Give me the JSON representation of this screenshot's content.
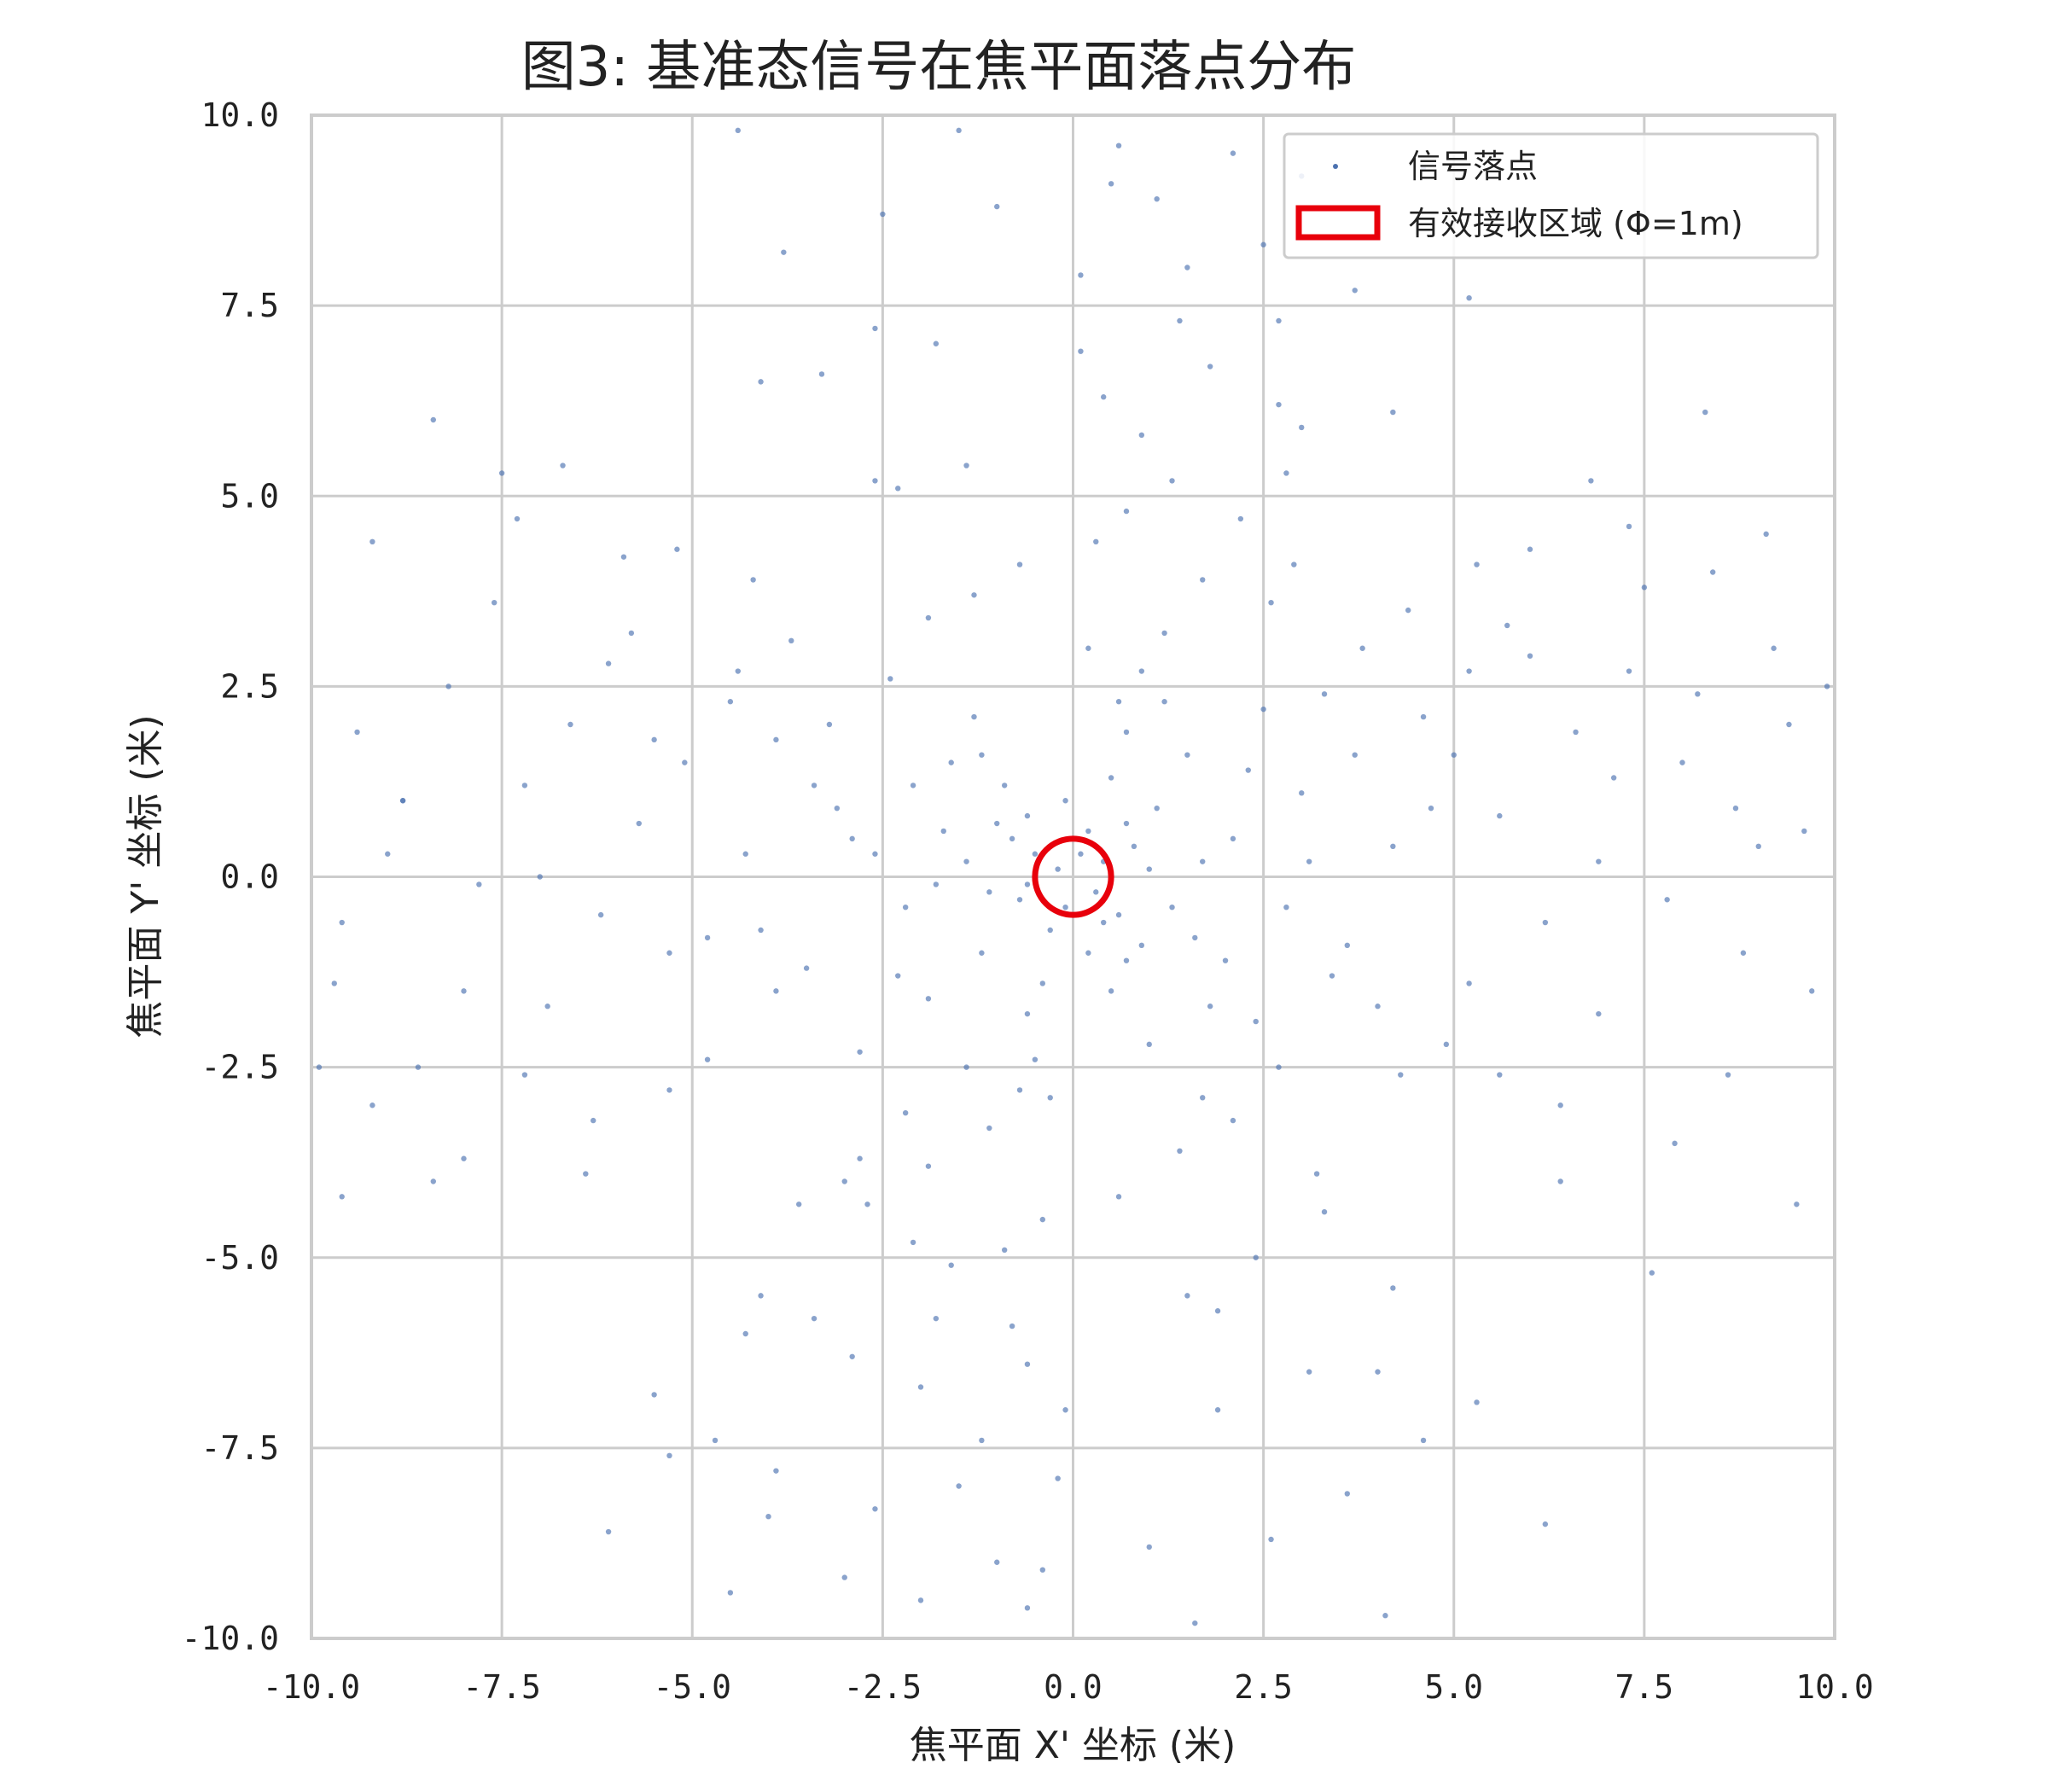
{
  "chart_data": {
    "type": "scatter",
    "title": "图3: 基准态信号在焦平面落点分布",
    "xlabel": "焦平面 X' 坐标 (米)",
    "ylabel": "焦平面 Y' 坐标 (米)",
    "xlim": [
      -10,
      10
    ],
    "ylim": [
      -10,
      10
    ],
    "xticks": [
      "-10.0",
      "-7.5",
      "-5.0",
      "-2.5",
      "0.0",
      "2.5",
      "5.0",
      "7.5",
      "10.0"
    ],
    "yticks": [
      "-10.0",
      "-7.5",
      "-5.0",
      "-2.5",
      "0.0",
      "2.5",
      "5.0",
      "7.5",
      "10.0"
    ],
    "grid": true,
    "legend_position": "top-right",
    "series": [
      {
        "name": "信号落点",
        "color": "#4c72b0",
        "points": [
          [
            0.1,
            0.3
          ],
          [
            -0.2,
            0.1
          ],
          [
            0.3,
            -0.2
          ],
          [
            -0.1,
            -0.4
          ],
          [
            0.4,
            0.2
          ],
          [
            -0.5,
            0.3
          ],
          [
            0.2,
            0.6
          ],
          [
            -0.3,
            -0.7
          ],
          [
            0.6,
            -0.5
          ],
          [
            -0.7,
            -0.3
          ],
          [
            0.8,
            0.4
          ],
          [
            -0.6,
            0.8
          ],
          [
            0.9,
            -0.9
          ],
          [
            -1.0,
            0.7
          ],
          [
            1.1,
            0.9
          ],
          [
            -1.2,
            -1.0
          ],
          [
            1.3,
            -0.4
          ],
          [
            -1.4,
            0.2
          ],
          [
            0.5,
            1.3
          ],
          [
            -0.4,
            -1.4
          ],
          [
            1.5,
            1.6
          ],
          [
            -1.6,
            1.5
          ],
          [
            1.8,
            -1.7
          ],
          [
            -1.9,
            -1.6
          ],
          [
            2.1,
            0.5
          ],
          [
            -2.2,
            -0.4
          ],
          [
            0.6,
            2.3
          ],
          [
            -0.5,
            -2.4
          ],
          [
            2.5,
            2.2
          ],
          [
            -2.4,
            2.6
          ],
          [
            2.7,
            -2.5
          ],
          [
            -2.8,
            -2.3
          ],
          [
            3.0,
            1.1
          ],
          [
            -3.1,
            0.9
          ],
          [
            1.2,
            3.2
          ],
          [
            -1.1,
            -3.3
          ],
          [
            3.4,
            -1.3
          ],
          [
            -3.5,
            -1.2
          ],
          [
            1.4,
            -3.6
          ],
          [
            -1.3,
            3.7
          ],
          [
            3.8,
            3.0
          ],
          [
            -3.7,
            3.1
          ],
          [
            3.2,
            -3.9
          ],
          [
            -3.0,
            -4.0
          ],
          [
            4.2,
            0.4
          ],
          [
            -4.3,
            0.3
          ],
          [
            0.3,
            4.4
          ],
          [
            -0.4,
            -4.5
          ],
          [
            4.6,
            2.1
          ],
          [
            -4.5,
            2.3
          ],
          [
            2.2,
            4.7
          ],
          [
            -2.1,
            -4.8
          ],
          [
            4.9,
            -2.2
          ],
          [
            -4.8,
            -2.4
          ],
          [
            2.4,
            -5.0
          ],
          [
            -2.3,
            5.1
          ],
          [
            5.3,
            4.1
          ],
          [
            -5.2,
            4.3
          ],
          [
            4.2,
            -5.4
          ],
          [
            -4.1,
            -5.5
          ],
          [
            5.6,
            0.8
          ],
          [
            -5.7,
            0.7
          ],
          [
            0.9,
            5.8
          ],
          [
            -0.8,
            -5.9
          ],
          [
            6.0,
            2.9
          ],
          [
            -6.1,
            2.8
          ],
          [
            2.7,
            6.2
          ],
          [
            -2.9,
            -6.3
          ],
          [
            6.4,
            -3.0
          ],
          [
            -6.3,
            -3.2
          ],
          [
            3.1,
            -6.5
          ],
          [
            -3.3,
            6.6
          ],
          [
            6.8,
            5.2
          ],
          [
            -6.7,
            5.4
          ],
          [
            5.3,
            -6.9
          ],
          [
            -5.5,
            -6.8
          ],
          [
            7.1,
            1.3
          ],
          [
            -7.2,
            1.2
          ],
          [
            1.4,
            7.3
          ],
          [
            -1.2,
            -7.4
          ],
          [
            7.5,
            3.8
          ],
          [
            -7.6,
            3.6
          ],
          [
            3.7,
            7.7
          ],
          [
            -3.9,
            -7.8
          ],
          [
            7.9,
            -3.5
          ],
          [
            -8.0,
            -3.7
          ],
          [
            3.6,
            -8.1
          ],
          [
            -3.8,
            8.2
          ],
          [
            8.3,
            6.1
          ],
          [
            -8.4,
            6.0
          ],
          [
            6.2,
            -8.5
          ],
          [
            -6.1,
            -8.6
          ],
          [
            8.7,
            0.9
          ],
          [
            -8.8,
            1.0
          ],
          [
            1.1,
            8.9
          ],
          [
            -1.0,
            -9.0
          ],
          [
            9.1,
            4.5
          ],
          [
            -9.2,
            4.4
          ],
          [
            4.6,
            9.3
          ],
          [
            -4.5,
            -9.4
          ],
          [
            9.5,
            -4.3
          ],
          [
            -9.6,
            -4.2
          ],
          [
            4.1,
            -9.7
          ],
          [
            -4.4,
            9.8
          ],
          [
            0.7,
            -1.1
          ],
          [
            -0.9,
            1.2
          ],
          [
            1.0,
            0.1
          ],
          [
            -1.1,
            -0.2
          ],
          [
            0.2,
            -1.0
          ],
          [
            -0.1,
            1.0
          ],
          [
            1.6,
            -0.8
          ],
          [
            -1.7,
            0.6
          ],
          [
            0.7,
            1.9
          ],
          [
            -0.6,
            -1.8
          ],
          [
            2.0,
            -1.1
          ],
          [
            -2.1,
            1.2
          ],
          [
            1.0,
            -2.2
          ],
          [
            -1.3,
            2.1
          ],
          [
            2.3,
            1.4
          ],
          [
            -2.3,
            -1.3
          ],
          [
            2.8,
            -0.4
          ],
          [
            -2.9,
            0.5
          ],
          [
            0.2,
            3.0
          ],
          [
            -0.3,
            -2.9
          ],
          [
            3.3,
            2.4
          ],
          [
            -3.2,
            2.0
          ],
          [
            2.1,
            -3.2
          ],
          [
            -2.2,
            -3.1
          ],
          [
            3.6,
            -0.9
          ],
          [
            -3.9,
            1.8
          ],
          [
            1.7,
            3.9
          ],
          [
            -1.9,
            -3.8
          ],
          [
            4.0,
            -1.7
          ],
          [
            -4.1,
            -0.7
          ],
          [
            0.6,
            -4.2
          ],
          [
            -0.7,
            4.1
          ],
          [
            4.4,
            3.5
          ],
          [
            -4.2,
            3.9
          ],
          [
            3.3,
            -4.4
          ],
          [
            -3.6,
            -4.3
          ],
          [
            5.0,
            1.6
          ],
          [
            -5.1,
            1.5
          ],
          [
            1.3,
            5.2
          ],
          [
            -1.6,
            -5.1
          ],
          [
            5.2,
            -1.4
          ],
          [
            -5.3,
            -1.0
          ],
          [
            1.5,
            -5.5
          ],
          [
            -1.4,
            5.4
          ],
          [
            5.7,
            3.3
          ],
          [
            -5.8,
            3.2
          ],
          [
            3.0,
            5.9
          ],
          [
            -3.4,
            -5.8
          ],
          [
            6.2,
            -0.6
          ],
          [
            -6.2,
            -0.5
          ],
          [
            0.4,
            6.3
          ],
          [
            -0.6,
            -6.4
          ],
          [
            6.6,
            1.9
          ],
          [
            -6.6,
            2.0
          ],
          [
            1.8,
            6.7
          ],
          [
            -2.0,
            -6.7
          ],
          [
            6.9,
            -1.8
          ],
          [
            -6.9,
            -1.7
          ],
          [
            1.9,
            -7.0
          ],
          [
            -1.8,
            7.0
          ],
          [
            7.3,
            4.6
          ],
          [
            -7.3,
            4.7
          ],
          [
            4.6,
            -7.4
          ],
          [
            -4.7,
            -7.4
          ],
          [
            7.8,
            -0.3
          ],
          [
            -7.8,
            -0.1
          ],
          [
            0.1,
            7.9
          ],
          [
            -0.2,
            -7.9
          ],
          [
            8.2,
            2.4
          ],
          [
            -8.2,
            2.5
          ],
          [
            2.5,
            8.3
          ],
          [
            -2.6,
            -8.3
          ],
          [
            8.6,
            -2.6
          ],
          [
            -8.6,
            -2.5
          ],
          [
            2.6,
            -8.7
          ],
          [
            -2.5,
            8.7
          ],
          [
            9.0,
            0.4
          ],
          [
            -9.0,
            0.3
          ],
          [
            0.5,
            9.1
          ],
          [
            -0.4,
            -9.1
          ],
          [
            9.4,
            2.0
          ],
          [
            -9.4,
            1.9
          ],
          [
            2.1,
            9.5
          ],
          [
            -2.0,
            -9.5
          ],
          [
            9.7,
            -1.5
          ],
          [
            -9.7,
            -1.4
          ],
          [
            1.6,
            -9.8
          ],
          [
            -1.5,
            9.8
          ],
          [
            0.4,
            -0.6
          ],
          [
            -0.6,
            -0.1
          ],
          [
            0.7,
            0.7
          ],
          [
            -0.8,
            0.5
          ],
          [
            0.5,
            -1.5
          ],
          [
            -1.2,
            1.6
          ],
          [
            1.7,
            0.2
          ],
          [
            -1.8,
            -0.1
          ],
          [
            1.2,
            2.3
          ],
          [
            -1.4,
            -2.5
          ],
          [
            2.4,
            -1.9
          ],
          [
            -2.6,
            0.3
          ],
          [
            0.9,
            2.7
          ],
          [
            -0.7,
            -2.8
          ],
          [
            3.1,
            0.2
          ],
          [
            -3.4,
            1.2
          ],
          [
            1.7,
            -2.9
          ],
          [
            -1.9,
            3.4
          ],
          [
            3.7,
            1.6
          ],
          [
            -3.9,
            -1.5
          ],
          [
            2.6,
            3.6
          ],
          [
            -2.8,
            -3.7
          ],
          [
            4.3,
            -2.6
          ],
          [
            -4.4,
            2.7
          ],
          [
            2.9,
            4.1
          ],
          [
            -2.7,
            -4.3
          ],
          [
            4.7,
            0.9
          ],
          [
            -4.8,
            -0.8
          ],
          [
            0.7,
            4.8
          ],
          [
            -0.9,
            -4.9
          ],
          [
            5.2,
            2.7
          ],
          [
            -5.3,
            -2.8
          ],
          [
            2.8,
            5.3
          ],
          [
            -2.6,
            5.2
          ],
          [
            5.6,
            -2.6
          ],
          [
            -5.5,
            1.8
          ],
          [
            1.9,
            -5.7
          ],
          [
            -1.8,
            -5.8
          ],
          [
            6.0,
            4.3
          ],
          [
            -5.9,
            4.2
          ],
          [
            4.2,
            6.1
          ],
          [
            -4.3,
            -6.0
          ],
          [
            6.4,
            -4.0
          ],
          [
            -6.4,
            -3.9
          ],
          [
            4.0,
            -6.5
          ],
          [
            -4.1,
            6.5
          ],
          [
            6.9,
            0.2
          ],
          [
            -7.0,
            0.0
          ],
          [
            0.1,
            6.9
          ],
          [
            -0.1,
            -7.0
          ],
          [
            7.3,
            2.7
          ],
          [
            -7.2,
            -2.6
          ],
          [
            2.7,
            7.3
          ],
          [
            -2.6,
            7.2
          ],
          [
            7.6,
            -5.2
          ],
          [
            -7.5,
            5.3
          ],
          [
            5.2,
            7.6
          ],
          [
            -5.3,
            -7.6
          ],
          [
            8.0,
            1.5
          ],
          [
            -8.0,
            -1.5
          ],
          [
            1.5,
            8.0
          ],
          [
            -1.5,
            -8.0
          ],
          [
            8.4,
            4.0
          ],
          [
            -8.4,
            -4.0
          ],
          [
            4.0,
            8.4
          ],
          [
            -4.0,
            -8.4
          ],
          [
            8.8,
            -1.0
          ],
          [
            -8.8,
            1.0
          ],
          [
            1.0,
            -8.8
          ],
          [
            -1.0,
            8.8
          ],
          [
            9.2,
            3.0
          ],
          [
            -9.2,
            -3.0
          ],
          [
            3.0,
            9.2
          ],
          [
            -3.0,
            -9.2
          ],
          [
            9.6,
            0.6
          ],
          [
            -9.6,
            -0.6
          ],
          [
            0.6,
            9.6
          ],
          [
            -0.6,
            -9.6
          ],
          [
            9.9,
            2.5
          ],
          [
            -9.9,
            -2.5
          ]
        ]
      },
      {
        "name": "有效接收区域 (Φ=1m)",
        "color": "#e8000b",
        "type": "circle",
        "center": [
          0,
          0
        ],
        "radius": 0.5
      }
    ]
  }
}
